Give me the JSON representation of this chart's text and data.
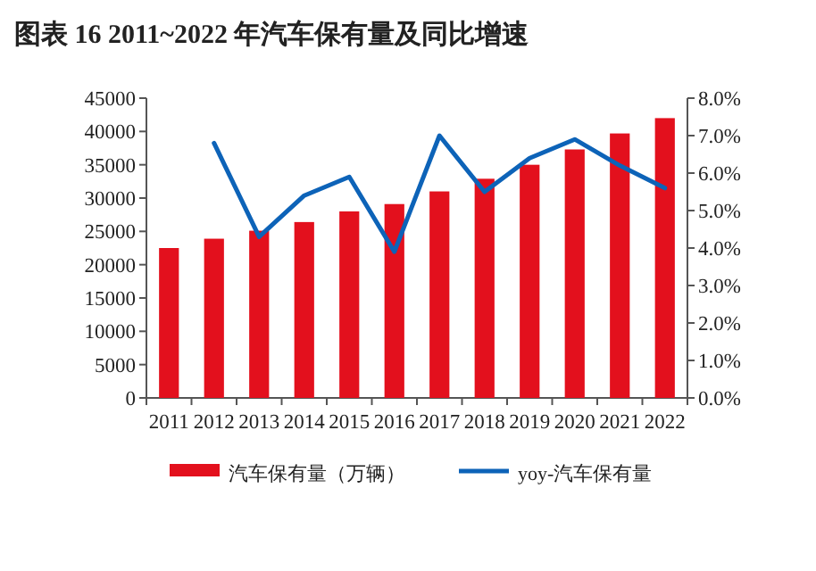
{
  "chart_data": {
    "type": "bar",
    "title": "图表 16   2011~2022 年汽车保有量及同比增速",
    "categories": [
      "2011",
      "2012",
      "2013",
      "2014",
      "2015",
      "2016",
      "2017",
      "2018",
      "2019",
      "2020",
      "2021",
      "2022"
    ],
    "series": [
      {
        "name": "汽车保有量（万辆）",
        "color": "#e3101d",
        "values": [
          22500,
          23900,
          25100,
          26400,
          28000,
          29100,
          31000,
          32900,
          35000,
          37300,
          39700,
          42000
        ]
      },
      {
        "name": "yoy-汽车保有量",
        "type": "line",
        "axis": "y2",
        "color": "#0d63b8",
        "values": [
          null,
          6.8,
          4.3,
          5.4,
          5.9,
          3.9,
          7.0,
          5.5,
          6.4,
          6.9,
          6.2,
          5.6
        ]
      }
    ],
    "ylim": [
      0,
      45000
    ],
    "yticks": [
      0,
      5000,
      10000,
      15000,
      20000,
      25000,
      30000,
      35000,
      40000,
      45000
    ],
    "y2lim": [
      0,
      8
    ],
    "y2ticks": [
      {
        "value": 0,
        "label": "0.0%"
      },
      {
        "value": 1,
        "label": "1.0%"
      },
      {
        "value": 2,
        "label": "2.0%"
      },
      {
        "value": 3,
        "label": "3.0%"
      },
      {
        "value": 4,
        "label": "4.0%"
      },
      {
        "value": 5,
        "label": "5.0%"
      },
      {
        "value": 6,
        "label": "6.0%"
      },
      {
        "value": 7,
        "label": "7.0%"
      },
      {
        "value": 8,
        "label": "8.0%"
      }
    ],
    "legend": "bottom",
    "grid": false
  }
}
